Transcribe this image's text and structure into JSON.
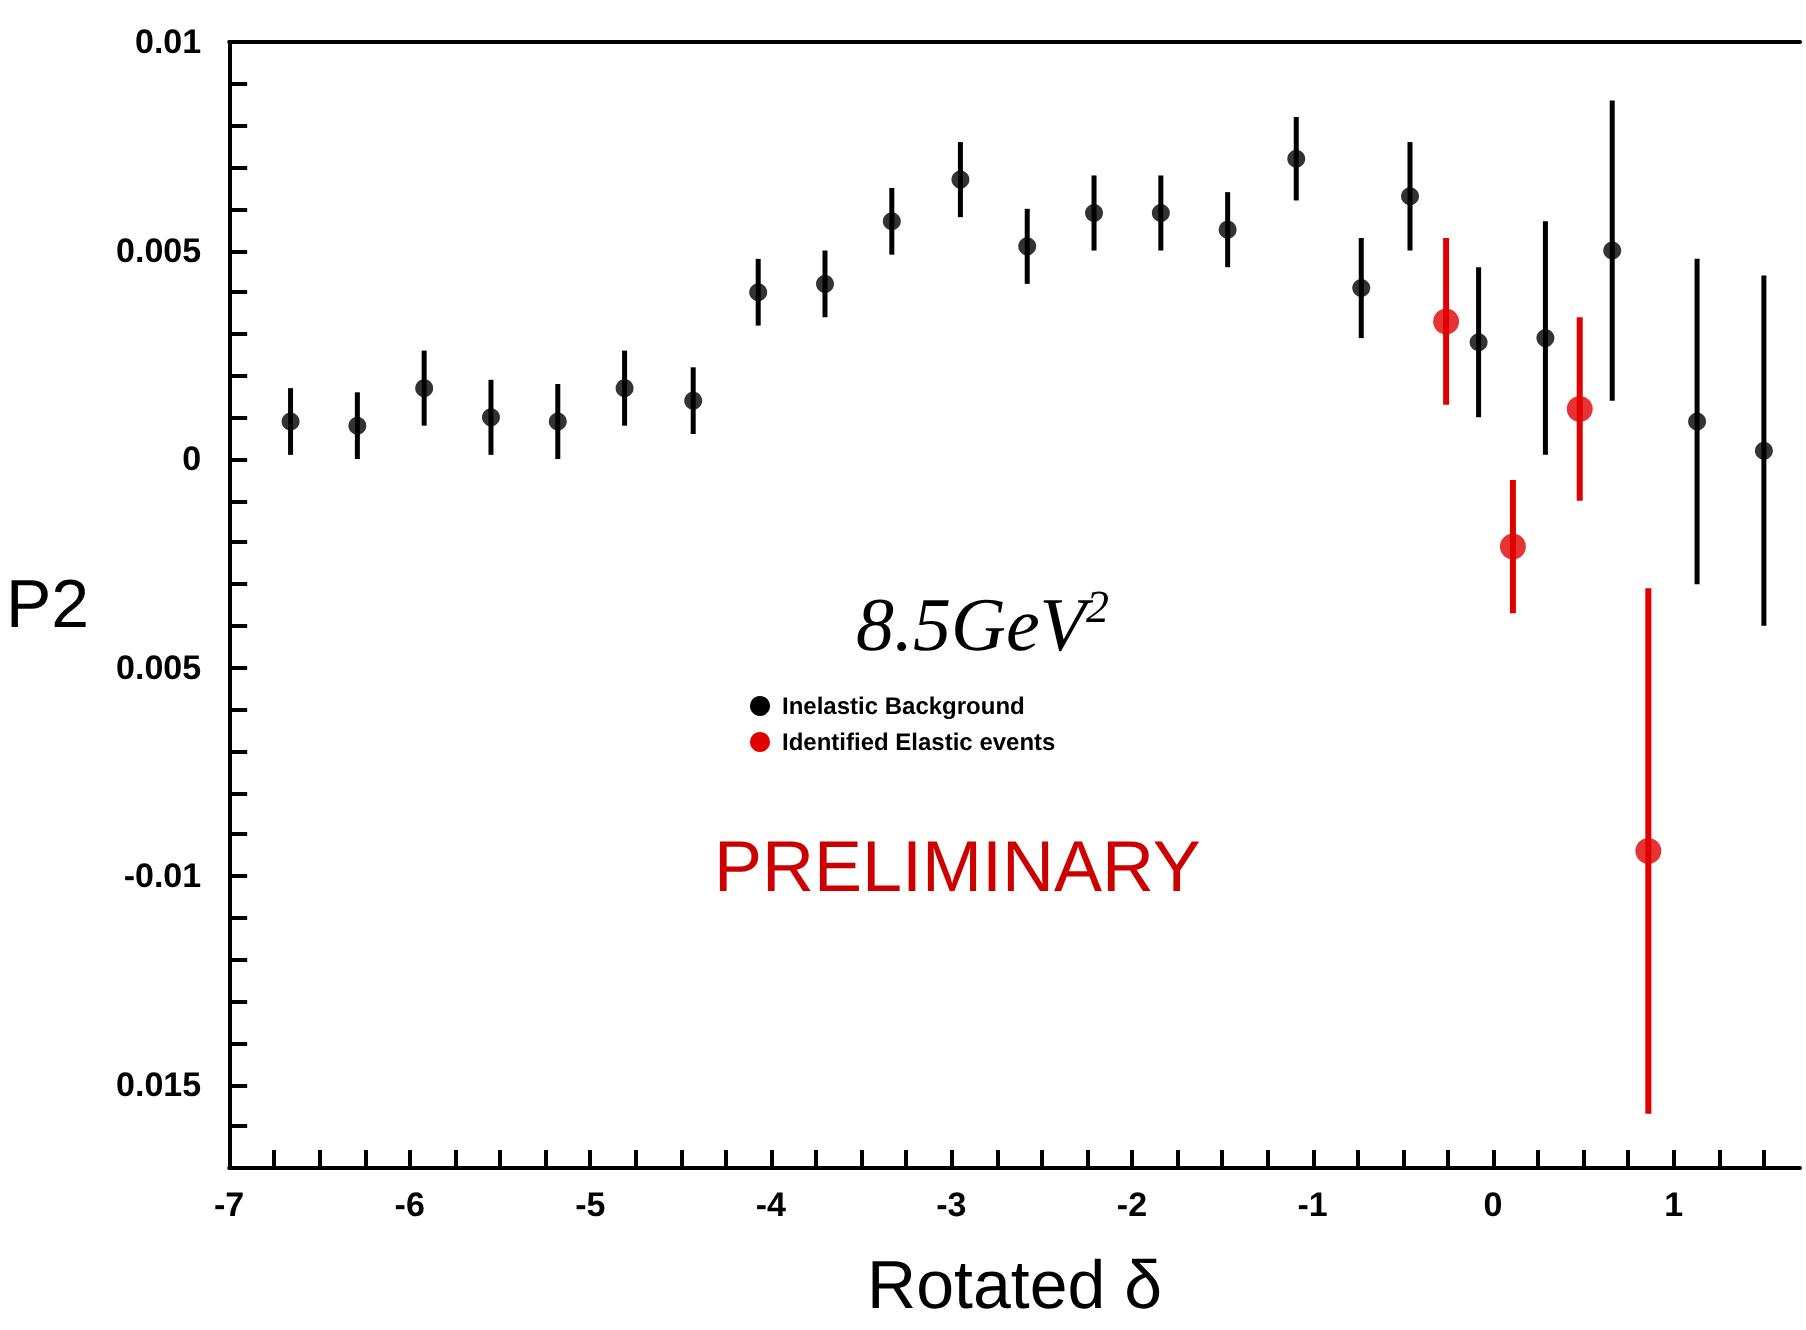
{
  "chart_data": {
    "type": "scatter",
    "xlabel": "Rotated δ",
    "ylabel": "P2",
    "annotations": [
      "8.5GeV$^{2}$",
      "PRELIMINARY"
    ],
    "xlim": [
      -7,
      1.7
    ],
    "ylim": [
      -0.017,
      0.01
    ],
    "xticks": [
      -7,
      {
        "value": -6.75,
        "label": null
      },
      {
        "value": -6.5,
        "label": null
      },
      {
        "value": -6.25,
        "label": null
      },
      -6,
      {
        "value": -5.75,
        "label": null
      },
      {
        "value": -5.5,
        "label": null
      },
      {
        "value": -5.25,
        "label": null
      },
      -5,
      {
        "value": -4.75,
        "label": null
      },
      {
        "value": -4.5,
        "label": null
      },
      {
        "value": -4.25,
        "label": null
      },
      -4,
      {
        "value": -3.75,
        "label": null
      },
      {
        "value": -3.5,
        "label": null
      },
      {
        "value": -3.25,
        "label": null
      },
      -3,
      {
        "value": -2.75,
        "label": null
      },
      {
        "value": -2.5,
        "label": null
      },
      {
        "value": -2.25,
        "label": null
      },
      -2,
      {
        "value": -1.75,
        "label": null
      },
      {
        "value": -1.5,
        "label": null
      },
      {
        "value": -1.25,
        "label": null
      },
      -1,
      {
        "value": -0.75,
        "label": null
      },
      {
        "value": -0.5,
        "label": null
      },
      {
        "value": -0.25,
        "label": null
      },
      0,
      {
        "value": 0.25,
        "label": null
      },
      {
        "value": 0.5,
        "label": null
      },
      {
        "value": 0.75,
        "label": null
      },
      1,
      {
        "value": 1.25,
        "label": null
      },
      {
        "value": 1.5,
        "label": null
      }
    ],
    "yticks": [
      0.01,
      {
        "value": 0.009,
        "label": null
      },
      {
        "value": 0.008,
        "label": null
      },
      {
        "value": 0.007,
        "label": null
      },
      {
        "value": 0.006,
        "label": null
      },
      0.005,
      {
        "value": 0.004,
        "label": null
      },
      {
        "value": 0.003,
        "label": null
      },
      {
        "value": 0.002,
        "label": null
      },
      {
        "value": 0.001,
        "label": null
      },
      0,
      {
        "value": -0.001,
        "label": null
      },
      {
        "value": -0.002,
        "label": null
      },
      {
        "value": -0.003,
        "label": null
      },
      {
        "value": -0.004,
        "label": null
      },
      {
        "value": -0.005,
        "label": "0.005"
      },
      {
        "value": -0.006,
        "label": null
      },
      {
        "value": -0.007,
        "label": null
      },
      {
        "value": -0.008,
        "label": null
      },
      {
        "value": -0.009,
        "label": null
      },
      -0.01,
      {
        "value": -0.011,
        "label": null
      },
      {
        "value": -0.012,
        "label": null
      },
      {
        "value": -0.013,
        "label": null
      },
      {
        "value": -0.014,
        "label": null
      },
      {
        "value": -0.015,
        "label": "0.015"
      },
      {
        "value": -0.016,
        "label": null
      }
    ],
    "legend": "center",
    "marker": "circle",
    "grid": false,
    "series": [
      {
        "name": "Inelastic Background",
        "color": "#000000",
        "x": [
          -6.66,
          -6.29,
          -5.92,
          -5.55,
          -5.18,
          -4.81,
          -4.43,
          -4.07,
          -3.7,
          -3.33,
          -2.95,
          -2.58,
          -2.21,
          -1.84,
          -1.47,
          -1.09,
          -0.73,
          -0.46,
          -0.08,
          0.29,
          0.66,
          1.13,
          1.5
        ],
        "values": [
          0.0009,
          0.0008,
          0.0017,
          0.001,
          0.0009,
          0.0017,
          0.0014,
          0.004,
          0.0042,
          0.0057,
          0.0067,
          0.0051,
          0.0059,
          0.0059,
          0.0055,
          0.0072,
          0.0041,
          0.0063,
          0.0028,
          0.0029,
          0.005,
          0.0009,
          0.0002
        ],
        "errors": [
          0.0008,
          0.0008,
          0.0009,
          0.0009,
          0.0009,
          0.0009,
          0.0008,
          0.0008,
          0.0008,
          0.0008,
          0.0009,
          0.0009,
          0.0009,
          0.0009,
          0.0009,
          0.001,
          0.0012,
          0.0013,
          0.0018,
          0.0028,
          0.0036,
          0.0039,
          0.0042
        ]
      },
      {
        "name": "Identified Elastic events",
        "color": "#e00000",
        "x": [
          -0.26,
          0.11,
          0.48,
          0.86
        ],
        "values": [
          0.0033,
          -0.0021,
          0.0012,
          -0.0094
        ],
        "errors": [
          0.002,
          0.0016,
          0.0022,
          0.0063
        ]
      }
    ]
  }
}
